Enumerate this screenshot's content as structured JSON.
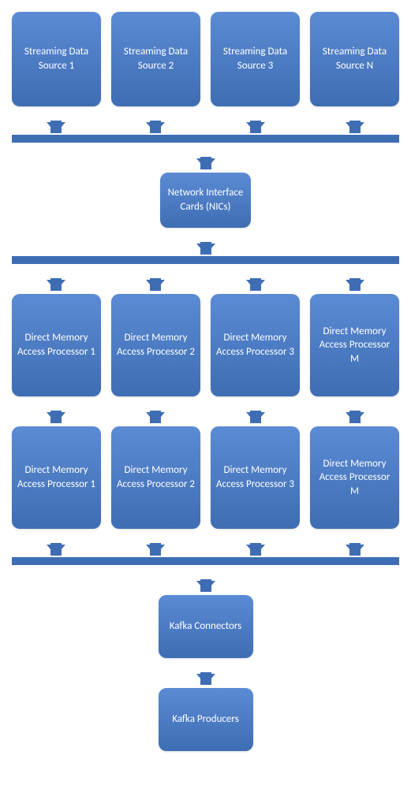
{
  "diagram": {
    "type": "flowchart",
    "background_color": "#ffffff",
    "node_gradient_top": "#5b8bd4",
    "node_gradient_bottom": "#3e6db3",
    "node_text_color": "#ffffff",
    "bar_color": "#3e6db3",
    "arrow_color": "#3e6db3",
    "node_border_radius": 10,
    "font_size": 13,
    "sources": [
      {
        "label": "Streaming Data Source 1"
      },
      {
        "label": "Streaming Data Source 2"
      },
      {
        "label": "Streaming Data Source 3"
      },
      {
        "label": "Streaming Data Source N"
      }
    ],
    "nic": {
      "label": "Network Interface Cards (NICs)"
    },
    "dma_row1": [
      {
        "label": "Direct Memory Access Processor 1"
      },
      {
        "label": "Direct Memory Access Processor 2"
      },
      {
        "label": "Direct Memory Access Processor 3"
      },
      {
        "label": "Direct Memory Access Processor M"
      }
    ],
    "dma_row2": [
      {
        "label": "Direct Memory Access Processor 1"
      },
      {
        "label": "Direct Memory Access Processor 2"
      },
      {
        "label": "Direct Memory Access Processor 3"
      },
      {
        "label": "Direct Memory Access Processor M"
      }
    ],
    "kafka_connectors": {
      "label": "Kafka Connectors"
    },
    "kafka_producers": {
      "label": "Kafka Producers"
    }
  }
}
